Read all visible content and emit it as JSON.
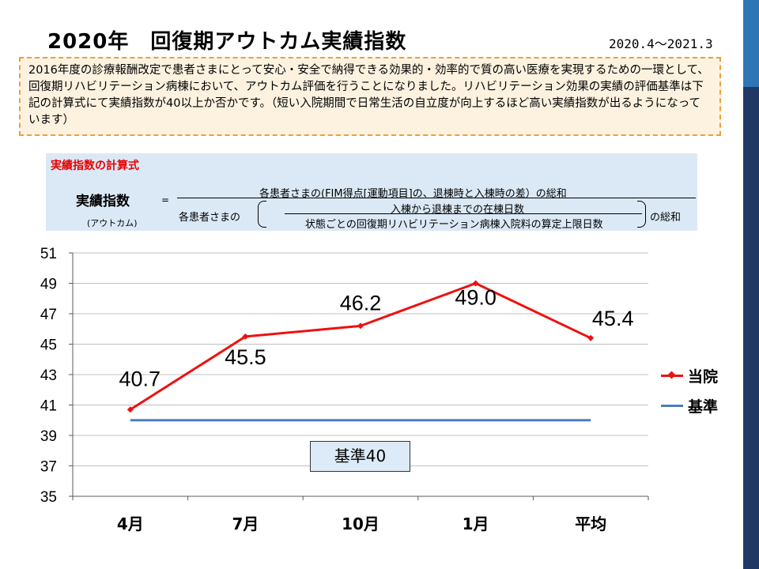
{
  "header": {
    "title": "2020年　回復期アウトカム実績指数",
    "period": "2020.4～2021.3"
  },
  "intro_text": "2016年度の診療報酬改定で患者さまにとって安心・安全で納得できる効果的・効率的で質の高い医療を実現するための一環として、回復期リハビリテーション病棟において、アウトカム評価を行うことになりました。リハビリテーション効果の実績の評価基準は下記の計算式にて実績指数が40以上か否かです。（短い入院期間で日常生活の自立度が向上するほど高い実績指数が出るようになっています）",
  "formula": {
    "title": "実績指数の計算式",
    "lhs": "実績指数",
    "lhs_sub": "(アウトカム)",
    "eq": "=",
    "numerator": "各患者さまの(FIM得点[運動項目]の、退棟時と入棟時の差）の総和",
    "denominator_prefix": "各患者さまの",
    "inner_numerator": "入棟から退棟までの在棟日数",
    "inner_denominator": "状態ごとの回復期リハビリテーション病棟入院料の算定上限日数",
    "denominator_suffix": "の総和"
  },
  "chart_data": {
    "type": "line",
    "categories": [
      "4月",
      "7月",
      "10月",
      "1月",
      "平均"
    ],
    "series": [
      {
        "name": "当院",
        "values": [
          40.7,
          45.5,
          46.2,
          49.0,
          45.4
        ],
        "color": "#ee1111",
        "marker": "diamond",
        "labels": [
          "40.7",
          "45.5",
          "46.2",
          "49.0",
          "45.4"
        ]
      },
      {
        "name": "基準",
        "values": [
          40,
          40,
          40,
          40,
          40
        ],
        "color": "#4a7ebb"
      }
    ],
    "ylim": [
      35,
      51
    ],
    "yticks": [
      "35",
      "37",
      "39",
      "41",
      "43",
      "45",
      "47",
      "49",
      "51"
    ],
    "grid": true,
    "legend_position": "right",
    "annotation": "基準40"
  },
  "colors": {
    "accent_dark": "#1f3864",
    "accent_light": "#2e75b6",
    "note_border": "#e6a23c"
  }
}
